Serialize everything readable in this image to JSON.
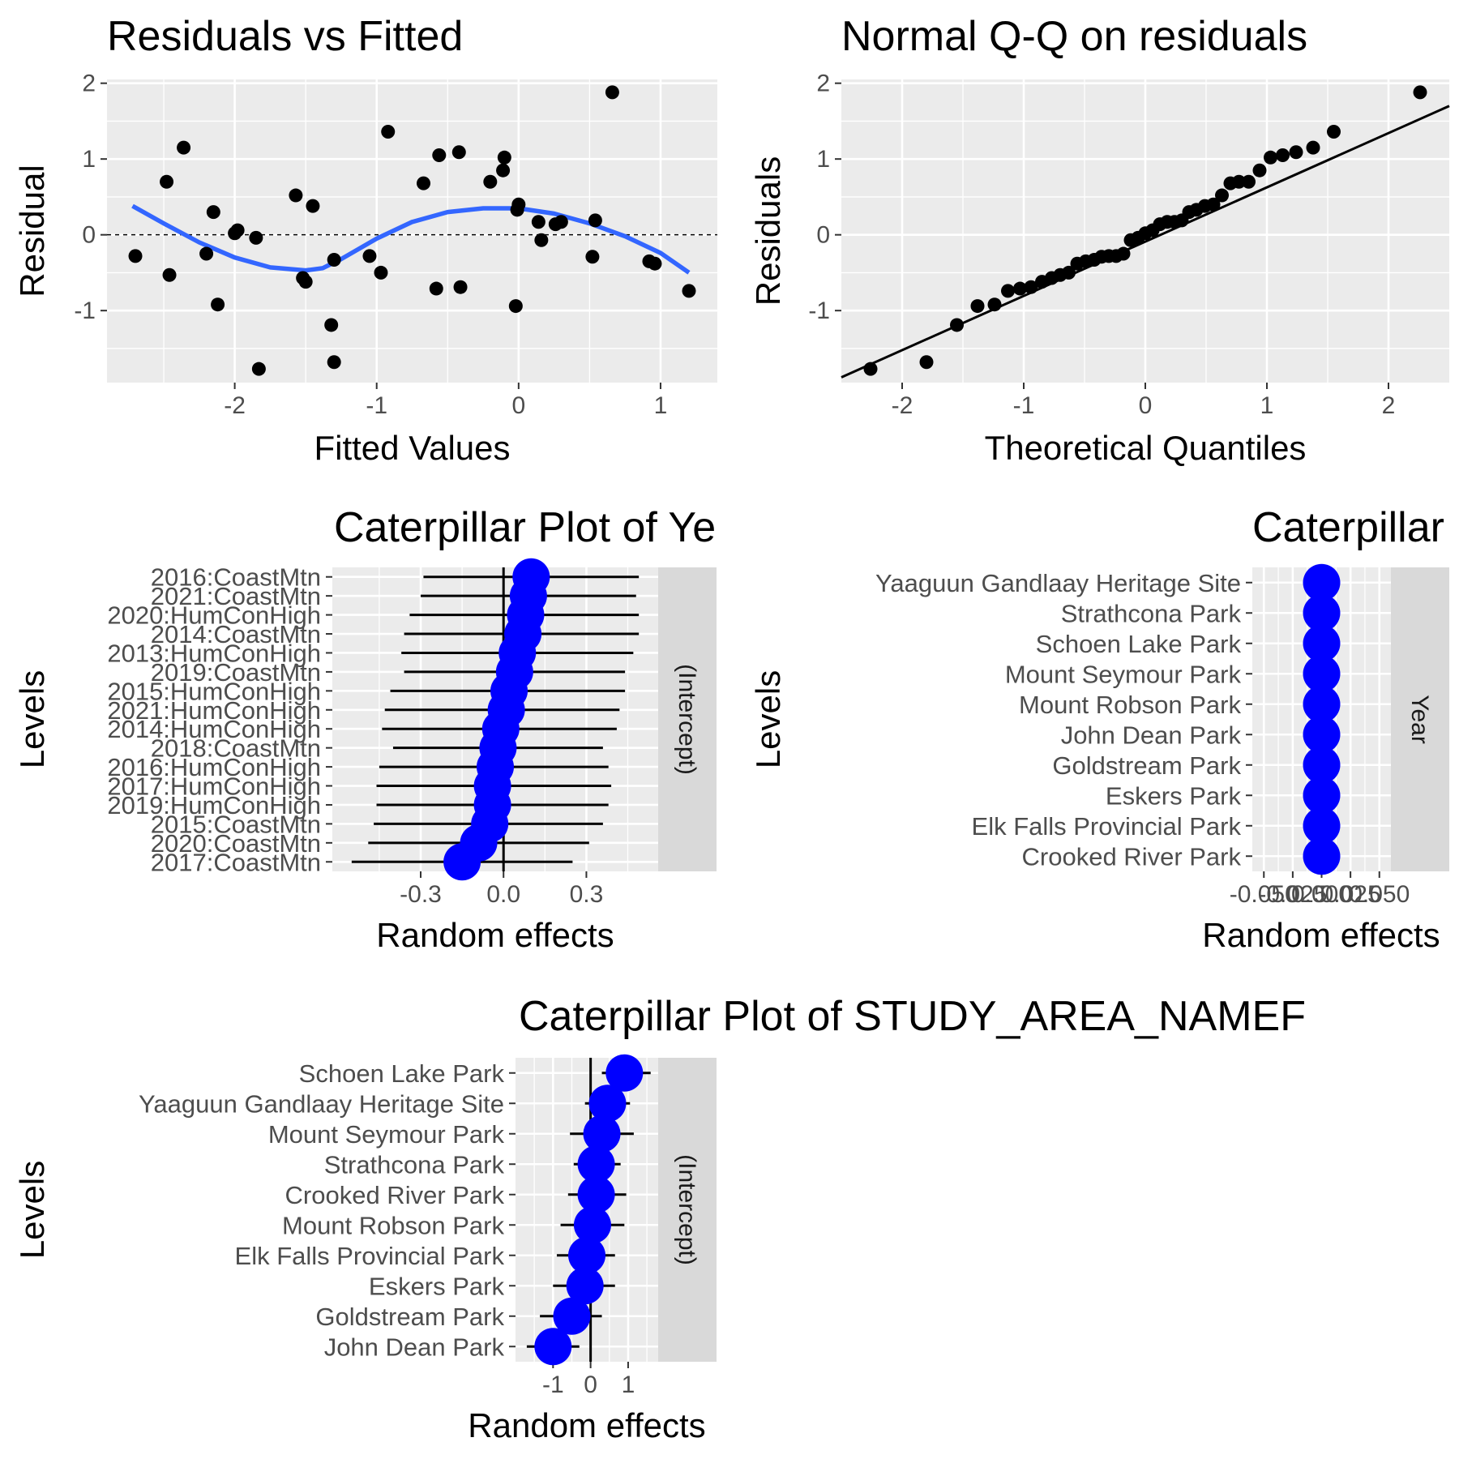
{
  "chart_data": [
    {
      "id": "resid",
      "type": "scatter",
      "title": "Residuals vs Fitted",
      "xlabel": "Fitted Values",
      "ylabel": "Residual",
      "xlim": [
        -2.9,
        1.4
      ],
      "ylim": [
        -1.95,
        2.05
      ],
      "xticks": [
        -2,
        -1,
        0,
        1
      ],
      "yticks": [
        -1,
        0,
        1,
        2
      ],
      "reference_line": {
        "y": 0,
        "style": "dashed"
      },
      "points": [
        [
          -2.7,
          -0.28
        ],
        [
          -2.48,
          0.7
        ],
        [
          -2.46,
          -0.53
        ],
        [
          -2.36,
          1.15
        ],
        [
          -2.2,
          -0.25
        ],
        [
          -2.15,
          0.3
        ],
        [
          -2.12,
          -0.92
        ],
        [
          -2.0,
          0.02
        ],
        [
          -1.98,
          0.06
        ],
        [
          -1.85,
          -0.04
        ],
        [
          -1.83,
          -1.77
        ],
        [
          -1.57,
          0.52
        ],
        [
          -1.52,
          -0.57
        ],
        [
          -1.5,
          -0.62
        ],
        [
          -1.45,
          0.38
        ],
        [
          -1.32,
          -1.19
        ],
        [
          -1.3,
          -0.33
        ],
        [
          -1.3,
          -1.68
        ],
        [
          -1.05,
          -0.28
        ],
        [
          -0.97,
          -0.5
        ],
        [
          -0.92,
          1.36
        ],
        [
          -0.67,
          0.68
        ],
        [
          -0.58,
          -0.71
        ],
        [
          -0.56,
          1.05
        ],
        [
          -0.42,
          1.09
        ],
        [
          -0.41,
          -0.69
        ],
        [
          -0.2,
          0.7
        ],
        [
          -0.11,
          0.85
        ],
        [
          -0.1,
          1.02
        ],
        [
          -0.02,
          -0.94
        ],
        [
          -0.01,
          0.33
        ],
        [
          0.0,
          0.4
        ],
        [
          0.14,
          0.17
        ],
        [
          0.16,
          -0.07
        ],
        [
          0.26,
          0.14
        ],
        [
          0.3,
          0.17
        ],
        [
          0.52,
          -0.29
        ],
        [
          0.54,
          0.19
        ],
        [
          0.66,
          1.88
        ],
        [
          0.92,
          -0.35
        ],
        [
          0.96,
          -0.38
        ],
        [
          1.2,
          -0.74
        ]
      ],
      "smooth": [
        [
          -2.72,
          0.38
        ],
        [
          -2.5,
          0.15
        ],
        [
          -2.25,
          -0.1
        ],
        [
          -2.0,
          -0.3
        ],
        [
          -1.75,
          -0.43
        ],
        [
          -1.5,
          -0.47
        ],
        [
          -1.38,
          -0.44
        ],
        [
          -1.25,
          -0.32
        ],
        [
          -1.0,
          -0.05
        ],
        [
          -0.75,
          0.17
        ],
        [
          -0.5,
          0.3
        ],
        [
          -0.25,
          0.35
        ],
        [
          0.0,
          0.35
        ],
        [
          0.25,
          0.28
        ],
        [
          0.5,
          0.15
        ],
        [
          0.75,
          -0.02
        ],
        [
          1.0,
          -0.24
        ],
        [
          1.2,
          -0.5
        ]
      ],
      "colors": {
        "points": "#000000",
        "smooth": "#3366ff"
      }
    },
    {
      "id": "qq",
      "type": "scatter",
      "title": "Normal Q-Q on residuals",
      "xlabel": "Theoretical Quantiles",
      "ylabel": "Residuals",
      "xlim": [
        -2.5,
        2.5
      ],
      "ylim": [
        -1.95,
        2.05
      ],
      "xticks": [
        -2,
        -1,
        0,
        1,
        2
      ],
      "yticks": [
        -1,
        0,
        1,
        2
      ],
      "reference_line": {
        "from": [
          -2.5,
          -1.88
        ],
        "to": [
          2.5,
          1.7
        ]
      },
      "points": [
        [
          -2.26,
          -1.77
        ],
        [
          -1.8,
          -1.68
        ],
        [
          -1.55,
          -1.19
        ],
        [
          -1.38,
          -0.94
        ],
        [
          -1.24,
          -0.92
        ],
        [
          -1.13,
          -0.74
        ],
        [
          -1.03,
          -0.71
        ],
        [
          -0.94,
          -0.69
        ],
        [
          -0.85,
          -0.62
        ],
        [
          -0.77,
          -0.57
        ],
        [
          -0.7,
          -0.53
        ],
        [
          -0.63,
          -0.5
        ],
        [
          -0.56,
          -0.38
        ],
        [
          -0.49,
          -0.35
        ],
        [
          -0.42,
          -0.33
        ],
        [
          -0.36,
          -0.29
        ],
        [
          -0.3,
          -0.28
        ],
        [
          -0.24,
          -0.28
        ],
        [
          -0.18,
          -0.25
        ],
        [
          -0.12,
          -0.07
        ],
        [
          -0.06,
          -0.04
        ],
        [
          0.0,
          0.02
        ],
        [
          0.06,
          0.06
        ],
        [
          0.12,
          0.14
        ],
        [
          0.18,
          0.17
        ],
        [
          0.24,
          0.17
        ],
        [
          0.3,
          0.19
        ],
        [
          0.36,
          0.3
        ],
        [
          0.42,
          0.33
        ],
        [
          0.49,
          0.38
        ],
        [
          0.56,
          0.4
        ],
        [
          0.63,
          0.52
        ],
        [
          0.7,
          0.68
        ],
        [
          0.77,
          0.7
        ],
        [
          0.85,
          0.7
        ],
        [
          0.94,
          0.85
        ],
        [
          1.03,
          1.02
        ],
        [
          1.13,
          1.05
        ],
        [
          1.24,
          1.09
        ],
        [
          1.38,
          1.15
        ],
        [
          1.55,
          1.36
        ],
        [
          2.26,
          1.88
        ]
      ],
      "colors": {
        "points": "#000000",
        "line": "#000000"
      }
    },
    {
      "id": "cat_year_intercept",
      "type": "scatter",
      "title": "Caterpillar Plot of  Ye",
      "xlabel": "Random effects",
      "ylabel": "Levels",
      "strip": "(Intercept)",
      "xlim": [
        -0.62,
        0.56
      ],
      "xticks": [
        -0.3,
        0.0,
        0.3
      ],
      "xtick_labels": [
        "-0.3",
        "0.0",
        "0.3"
      ],
      "levels": [
        {
          "label": "2016:CoastMtn",
          "value": 0.1,
          "lo": -0.29,
          "hi": 0.49
        },
        {
          "label": "2021:CoastMtn",
          "value": 0.09,
          "lo": -0.3,
          "hi": 0.48
        },
        {
          "label": "2020:HumConHigh",
          "value": 0.08,
          "lo": -0.34,
          "hi": 0.49
        },
        {
          "label": "2014:CoastMtn",
          "value": 0.07,
          "lo": -0.36,
          "hi": 0.49
        },
        {
          "label": "2013:HumConHigh",
          "value": 0.05,
          "lo": -0.37,
          "hi": 0.47
        },
        {
          "label": "2019:CoastMtn",
          "value": 0.04,
          "lo": -0.36,
          "hi": 0.44
        },
        {
          "label": "2015:HumConHigh",
          "value": 0.02,
          "lo": -0.41,
          "hi": 0.44
        },
        {
          "label": "2021:HumConHigh",
          "value": 0.01,
          "lo": -0.43,
          "hi": 0.42
        },
        {
          "label": "2014:HumConHigh",
          "value": -0.01,
          "lo": -0.44,
          "hi": 0.41
        },
        {
          "label": "2018:CoastMtn",
          "value": -0.02,
          "lo": -0.4,
          "hi": 0.36
        },
        {
          "label": "2016:HumConHigh",
          "value": -0.03,
          "lo": -0.45,
          "hi": 0.38
        },
        {
          "label": "2017:HumConHigh",
          "value": -0.04,
          "lo": -0.46,
          "hi": 0.39
        },
        {
          "label": "2019:HumConHigh",
          "value": -0.04,
          "lo": -0.46,
          "hi": 0.38
        },
        {
          "label": "2015:CoastMtn",
          "value": -0.05,
          "lo": -0.47,
          "hi": 0.36
        },
        {
          "label": "2020:CoastMtn",
          "value": -0.09,
          "lo": -0.49,
          "hi": 0.31
        },
        {
          "label": "2017:CoastMtn",
          "value": -0.15,
          "lo": -0.55,
          "hi": 0.25
        }
      ]
    },
    {
      "id": "cat_area_year",
      "type": "scatter",
      "title": "Caterpillar",
      "xlabel": "Random effects",
      "ylabel": "Levels",
      "strip": "Year",
      "xlim": [
        -0.06,
        0.06
      ],
      "xticks": [
        -0.05,
        -0.025,
        0.0,
        0.025,
        0.05
      ],
      "xtick_labels": [
        "-0.050",
        "-0.025",
        "0.000",
        "0.025",
        "0.050"
      ],
      "levels": [
        {
          "label": "Yaaguun Gandlaay Heritage Site",
          "value": 0.0
        },
        {
          "label": "Strathcona Park",
          "value": 0.0
        },
        {
          "label": "Schoen Lake Park",
          "value": 0.0
        },
        {
          "label": "Mount Seymour Park",
          "value": 0.0
        },
        {
          "label": "Mount Robson Park",
          "value": 0.0
        },
        {
          "label": "John Dean Park",
          "value": 0.0
        },
        {
          "label": "Goldstream Park",
          "value": 0.0
        },
        {
          "label": "Eskers Park",
          "value": 0.0
        },
        {
          "label": "Elk Falls Provincial Park",
          "value": 0.0
        },
        {
          "label": "Crooked River Park",
          "value": 0.0
        }
      ]
    },
    {
      "id": "cat_area_intercept",
      "type": "scatter",
      "title": "Caterpillar Plot of  STUDY_AREA_NAMEF",
      "xlabel": "Random effects",
      "ylabel": "Levels",
      "strip": "(Intercept)",
      "xlim": [
        -2.0,
        1.8
      ],
      "xticks": [
        -1,
        0,
        1
      ],
      "xtick_labels": [
        "-1",
        "0",
        "1"
      ],
      "levels": [
        {
          "label": "Schoen Lake Park",
          "value": 0.9,
          "lo": 0.3,
          "hi": 1.6
        },
        {
          "label": "Yaaguun Gandlaay Heritage Site",
          "value": 0.45,
          "lo": -0.15,
          "hi": 1.05
        },
        {
          "label": "Mount Seymour Park",
          "value": 0.3,
          "lo": -0.55,
          "hi": 1.15
        },
        {
          "label": "Strathcona Park",
          "value": 0.15,
          "lo": -0.45,
          "hi": 0.8
        },
        {
          "label": "Crooked River Park",
          "value": 0.15,
          "lo": -0.6,
          "hi": 0.95
        },
        {
          "label": "Mount Robson Park",
          "value": 0.05,
          "lo": -0.8,
          "hi": 0.9
        },
        {
          "label": "Elk Falls Provincial Park",
          "value": -0.1,
          "lo": -0.9,
          "hi": 0.65
        },
        {
          "label": "Eskers Park",
          "value": -0.15,
          "lo": -1.0,
          "hi": 0.65
        },
        {
          "label": "Goldstream Park",
          "value": -0.5,
          "lo": -1.35,
          "hi": 0.3
        },
        {
          "label": "John Dean Park",
          "value": -1.0,
          "lo": -1.7,
          "hi": -0.3
        }
      ]
    }
  ],
  "colors": {
    "panel_bg": "#ebebeb",
    "grid": "#ffffff",
    "strip_bg": "#d9d9d9",
    "caterpillar_point": "#0000ff"
  }
}
